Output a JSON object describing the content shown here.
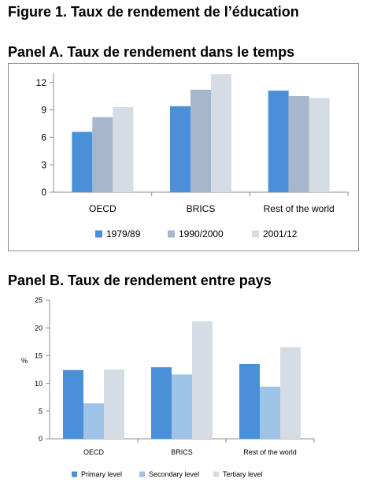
{
  "figure_title": "Figure 1. Taux de rendement de l’éducation",
  "panel_a_title": "Panel A. Taux de rendement dans le temps",
  "panel_b_title": "Panel B. Taux de rendement entre pays",
  "chart_data": [
    {
      "type": "bar",
      "categories": [
        "OECD",
        "BRICS",
        "Rest of the world"
      ],
      "series": [
        {
          "name": "1979/89",
          "color": "#4a90d9",
          "values": [
            6.6,
            9.4,
            11.1
          ]
        },
        {
          "name": "1990/2000",
          "color": "#a6b6cb",
          "values": [
            8.2,
            11.2,
            10.5
          ]
        },
        {
          "name": "2001/12",
          "color": "#d6dce6",
          "values": [
            9.3,
            12.9,
            10.3
          ]
        }
      ],
      "ylim": [
        0,
        13
      ],
      "yticks": [
        0,
        3,
        6,
        9,
        12
      ],
      "ytick_labels": [
        "0",
        "3",
        "6",
        "9",
        "12"
      ],
      "legend_position": "bottom",
      "grid": false
    },
    {
      "type": "bar",
      "categories": [
        "OECD",
        "BRICS",
        "Rest of the world"
      ],
      "series": [
        {
          "name": "Primary level",
          "color": "#4a90d9",
          "values": [
            12.4,
            12.9,
            13.5
          ]
        },
        {
          "name": "Secondary level",
          "color": "#9dc3e6",
          "values": [
            6.4,
            11.6,
            9.4
          ]
        },
        {
          "name": "Tertiary level",
          "color": "#d6dce6",
          "values": [
            12.5,
            21.2,
            16.5
          ]
        }
      ],
      "ylabel": "%",
      "ylim": [
        0,
        25
      ],
      "yticks": [
        0,
        5,
        10,
        15,
        20,
        25
      ],
      "ytick_labels": [
        "0",
        "5",
        "10",
        "15",
        "20",
        "25"
      ],
      "legend_position": "bottom",
      "grid": false
    }
  ]
}
